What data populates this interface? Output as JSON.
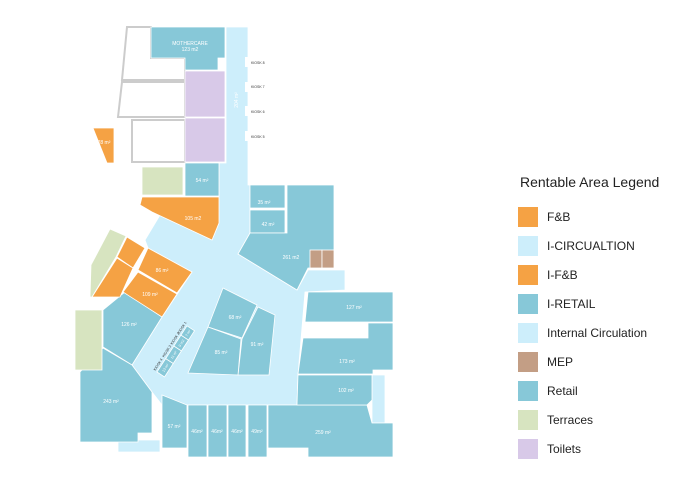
{
  "colors": {
    "fnb": "#f5a244",
    "circulation": "#cdeefb",
    "retail": "#87c8d8",
    "mep": "#c39e85",
    "terraces": "#d7e4c0",
    "toilets": "#d8c9e8"
  },
  "plan": {
    "mothercare_name": "MOTHERCARE",
    "mothercare_area": "123 m2",
    "circulation_area": "204 m²",
    "kiosks_right": [
      "KIOSK 8",
      "KIOSK 7",
      "KIOSK 6",
      "KIOSK 5"
    ],
    "kiosks_left": [
      "KIOSK 1",
      "KIOSK 2",
      "KIOSK 3",
      "KIOSK 4"
    ],
    "kiosk_areas": [
      "7 m²",
      "9 m2",
      "11 m²",
      "13 m²"
    ],
    "units": {
      "u28": "28 m²",
      "u54": "54 m²",
      "u35": "35 m²",
      "u105": "105 m2",
      "u42": "42 m²",
      "u261": "261 m2",
      "u86": "86 m²",
      "u109": "109 m²",
      "u126": "126 m²",
      "u68": "68 m²",
      "u91": "91 m²",
      "u85": "85 m²",
      "u127": "127 m²",
      "u173": "173 m²",
      "u102": "102 m²",
      "u243": "243 m²",
      "u57": "57 m²",
      "u46a": "46m²",
      "u46b": "46m²",
      "u46c": "46m²",
      "u49": "49m²",
      "u259": "259 m²"
    }
  },
  "legend": {
    "title": "Rentable Area Legend",
    "items": [
      {
        "label": "F&B",
        "color": "#f5a244"
      },
      {
        "label": "I-CIRCUALTION",
        "color": "#cdeefb"
      },
      {
        "label": "I-F&B",
        "color": "#f5a244"
      },
      {
        "label": "I-RETAIL",
        "color": "#87c8d8"
      },
      {
        "label": "Internal Circulation",
        "color": "#cdeefb"
      },
      {
        "label": "MEP",
        "color": "#c39e85"
      },
      {
        "label": "Retail",
        "color": "#87c8d8"
      },
      {
        "label": "Terraces",
        "color": "#d7e4c0"
      },
      {
        "label": "Toilets",
        "color": "#d8c9e8"
      }
    ]
  }
}
